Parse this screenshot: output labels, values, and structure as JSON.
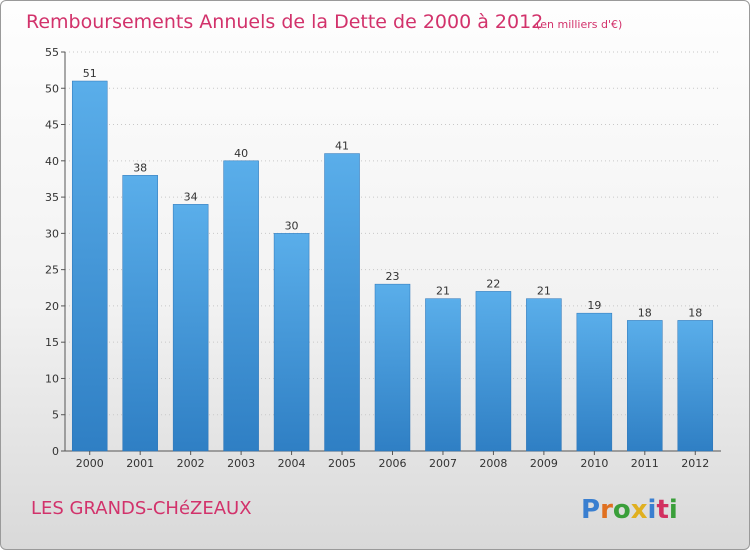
{
  "chart_data": {
    "type": "bar",
    "title": "Remboursements Annuels de la Dette de 2000 à 2012",
    "subtitle": "(en milliers d'€)",
    "categories": [
      "2000",
      "2001",
      "2002",
      "2003",
      "2004",
      "2005",
      "2006",
      "2007",
      "2008",
      "2009",
      "2010",
      "2011",
      "2012"
    ],
    "values": [
      51,
      38,
      34,
      40,
      30,
      41,
      23,
      21,
      22,
      21,
      19,
      18,
      18
    ],
    "ylim": [
      0,
      55
    ],
    "yticks": [
      0,
      5,
      10,
      15,
      20,
      25,
      30,
      35,
      40,
      45,
      50,
      55
    ],
    "grid": true,
    "bar_color": "#4a9fe0"
  },
  "footer": {
    "commune": "LES GRANDS-CHéZEAUX",
    "logo_letters": [
      {
        "char": "P",
        "color": "#3a7fd0"
      },
      {
        "char": "r",
        "color": "#e07020"
      },
      {
        "char": "o",
        "color": "#3a9f3a"
      },
      {
        "char": "x",
        "color": "#e0b020"
      },
      {
        "char": "i",
        "color": "#3a7fd0"
      },
      {
        "char": "t",
        "color": "#d23060"
      },
      {
        "char": "i",
        "color": "#3a9f3a"
      }
    ]
  }
}
